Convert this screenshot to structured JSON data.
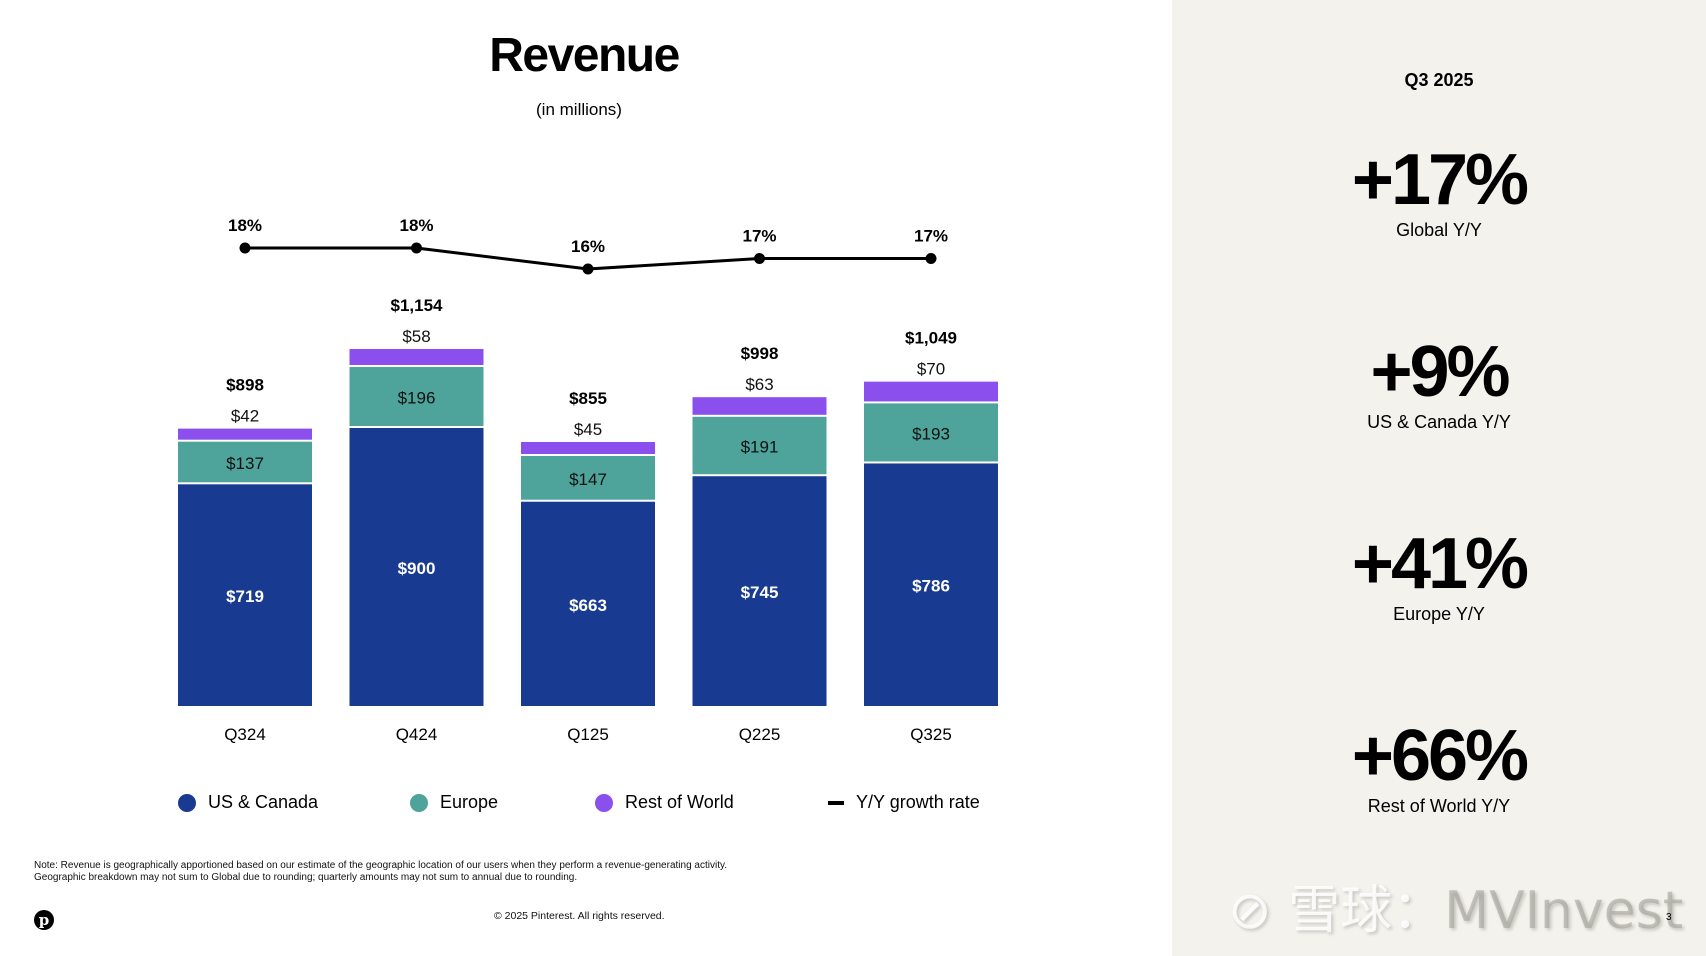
{
  "slide": {
    "title": "Revenue",
    "subtitle": "(in millions)",
    "note_line1": "Note: Revenue is geographically apportioned based on our estimate of the geographic location of our users when they perform a revenue-generating activity.",
    "note_line2": "Geographic breakdown may not sum to Global due to rounding; quarterly amounts may not sum to annual due to rounding.",
    "copyright": "© 2025 Pinterest. All rights reserved.",
    "logo_glyph": "p",
    "page_number": "3",
    "watermark_cn": "雪球：",
    "watermark_en": "MVInvest"
  },
  "colors": {
    "us_canada": "#183a91",
    "europe": "#4ea39a",
    "rest_of_world": "#8a4fec",
    "growth_line": "#000000",
    "panel_bg": "#f3f2ec"
  },
  "legend": [
    {
      "label": "US & Canada",
      "type": "dot",
      "color": "#183a91"
    },
    {
      "label": "Europe",
      "type": "dot",
      "color": "#4ea39a"
    },
    {
      "label": "Rest of World",
      "type": "dot",
      "color": "#8a4fec"
    },
    {
      "label": "Y/Y growth rate",
      "type": "line",
      "color": "#000000"
    }
  ],
  "sidebar": {
    "period": "Q3 2025",
    "kpis": [
      {
        "value": "+17%",
        "label": "Global Y/Y"
      },
      {
        "value": "+9%",
        "label": "US & Canada Y/Y"
      },
      {
        "value": "+41%",
        "label": "Europe Y/Y"
      },
      {
        "value": "+66%",
        "label": "Rest of World Y/Y"
      }
    ]
  },
  "chart_data": {
    "type": "bar",
    "stacked": true,
    "title": "Revenue",
    "subtitle": "(in millions)",
    "xlabel": "",
    "ylabel": "",
    "categories": [
      "Q324",
      "Q424",
      "Q125",
      "Q225",
      "Q325"
    ],
    "series": [
      {
        "name": "US & Canada",
        "values": [
          719,
          900,
          663,
          745,
          786
        ],
        "labels": [
          "$719",
          "$900",
          "$663",
          "$745",
          "$786"
        ]
      },
      {
        "name": "Europe",
        "values": [
          137,
          196,
          147,
          191,
          193
        ],
        "labels": [
          "$137",
          "$196",
          "$147",
          "$191",
          "$193"
        ]
      },
      {
        "name": "Rest of World",
        "values": [
          42,
          58,
          45,
          63,
          70
        ],
        "labels": [
          "$42",
          "$58",
          "$45",
          "$63",
          "$70"
        ]
      }
    ],
    "totals": [
      898,
      1154,
      855,
      998,
      1049
    ],
    "total_labels": [
      "$898",
      "$1,154",
      "$855",
      "$998",
      "$1,049"
    ],
    "growth_line": {
      "name": "Y/Y growth rate",
      "type": "line",
      "values": [
        18,
        18,
        16,
        17,
        17
      ],
      "labels": [
        "18%",
        "18%",
        "16%",
        "17%",
        "17%"
      ]
    },
    "grid": false,
    "legend_position": "bottom"
  }
}
